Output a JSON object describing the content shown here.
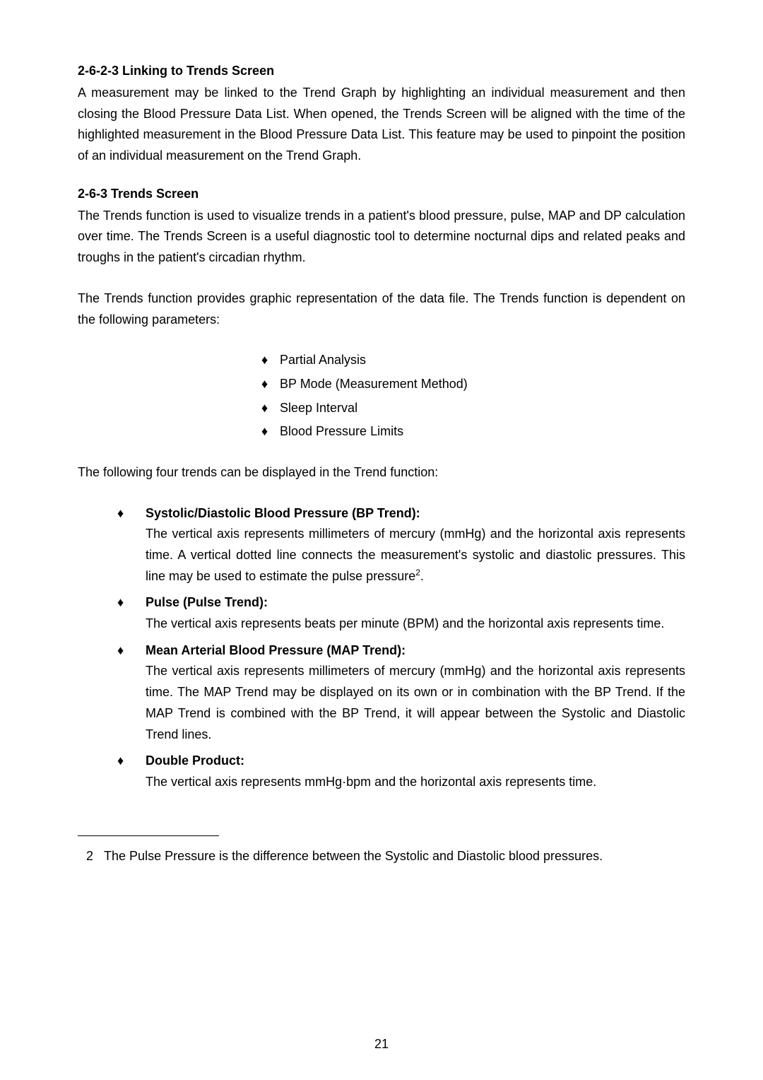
{
  "section1": {
    "heading": "2-6-2-3 Linking to Trends Screen",
    "para": "A measurement may be linked to the Trend Graph by highlighting an individual measurement and then closing the Blood Pressure Data List. When opened, the Trends Screen will be aligned with the time of the highlighted measurement in the Blood Pressure Data List. This feature may be used to pinpoint the position of an individual measurement on the Trend Graph."
  },
  "section2": {
    "heading": "2-6-3 Trends Screen",
    "para1": "The Trends function is used to visualize trends in a patient's blood pressure, pulse, MAP and DP calculation over time. The Trends Screen is a useful diagnostic tool to determine nocturnal dips and related peaks and troughs in the patient's circadian rhythm.",
    "para2": "The Trends function provides graphic representation of the data file. The Trends function is dependent on the following parameters:",
    "params": [
      "Partial Analysis",
      "BP Mode (Measurement Method)",
      "Sleep Interval",
      "Blood Pressure Limits"
    ],
    "para3": "The following four trends can be displayed in the Trend function:",
    "trends": [
      {
        "title": "Systolic/Diastolic Blood Pressure (BP Trend):",
        "desc_pre": "The vertical axis represents millimeters of mercury (mmHg) and the horizontal axis represents time. A vertical dotted line connects the measurement's systolic and diastolic pressures.  This line may be used to estimate the pulse pressure",
        "sup": "2",
        "desc_post": "."
      },
      {
        "title": "Pulse (Pulse Trend):",
        "desc": "The vertical axis represents beats per minute (BPM) and the horizontal axis represents time."
      },
      {
        "title": "Mean Arterial Blood Pressure (MAP Trend):",
        "desc": "The vertical axis represents millimeters of mercury (mmHg) and the horizontal axis represents time. The MAP Trend may be displayed on its own or in combination with the BP Trend. If the MAP Trend is combined with the BP Trend, it will appear between the Systolic and Diastolic Trend lines."
      },
      {
        "title": "Double Product:",
        "desc": "The vertical axis represents mmHg·bpm and the horizontal axis represents time."
      }
    ]
  },
  "footnote": {
    "num": "2",
    "text": "The Pulse Pressure is the difference between the Systolic and Diastolic blood pressures."
  },
  "page_number": "21",
  "bullet_glyph": "♦"
}
